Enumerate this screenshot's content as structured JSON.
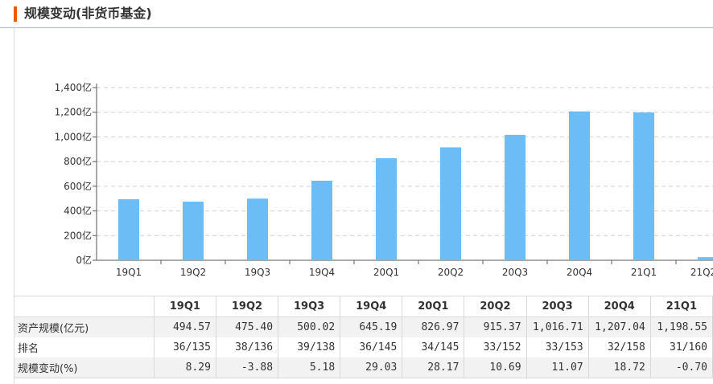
{
  "header": {
    "title": "规模变动(非货币基金)"
  },
  "colors": {
    "accent": "#e8590c",
    "bar": "#6cbcf5",
    "grid": "#cfcfcf"
  },
  "chart_data": {
    "type": "bar",
    "title": "",
    "xlabel": "",
    "ylabel": "",
    "categories": [
      "19Q1",
      "19Q2",
      "19Q3",
      "19Q4",
      "20Q1",
      "20Q2",
      "20Q3",
      "20Q4",
      "21Q1",
      "21Q2"
    ],
    "values": [
      494.57,
      475.4,
      500.02,
      645.19,
      826.97,
      915.37,
      1016.71,
      1207.04,
      1198.55,
      25
    ],
    "yticks": [
      0,
      200,
      400,
      600,
      800,
      1000,
      1200,
      1400
    ],
    "ytick_labels": [
      "0亿",
      "200亿",
      "400亿",
      "600亿",
      "800亿",
      "1,000亿",
      "1,200亿",
      "1,400亿"
    ],
    "ylim": [
      0,
      1400
    ],
    "grid": true
  },
  "table": {
    "headers": [
      "",
      "19Q1",
      "19Q2",
      "19Q3",
      "19Q4",
      "20Q1",
      "20Q2",
      "20Q3",
      "20Q4",
      "21Q1"
    ],
    "rows": [
      {
        "label": "资产规模(亿元)",
        "cells": [
          "494.57",
          "475.40",
          "500.02",
          "645.19",
          "826.97",
          "915.37",
          "1,016.71",
          "1,207.04",
          "1,198.55"
        ]
      },
      {
        "label": "排名",
        "cells": [
          "36/135",
          "38/136",
          "39/138",
          "36/145",
          "34/145",
          "33/152",
          "33/153",
          "32/158",
          "31/160"
        ]
      },
      {
        "label": "规模变动(%)",
        "cells": [
          "8.29",
          "-3.88",
          "5.18",
          "29.03",
          "28.17",
          "10.69",
          "11.07",
          "18.72",
          "-0.70"
        ]
      }
    ]
  }
}
